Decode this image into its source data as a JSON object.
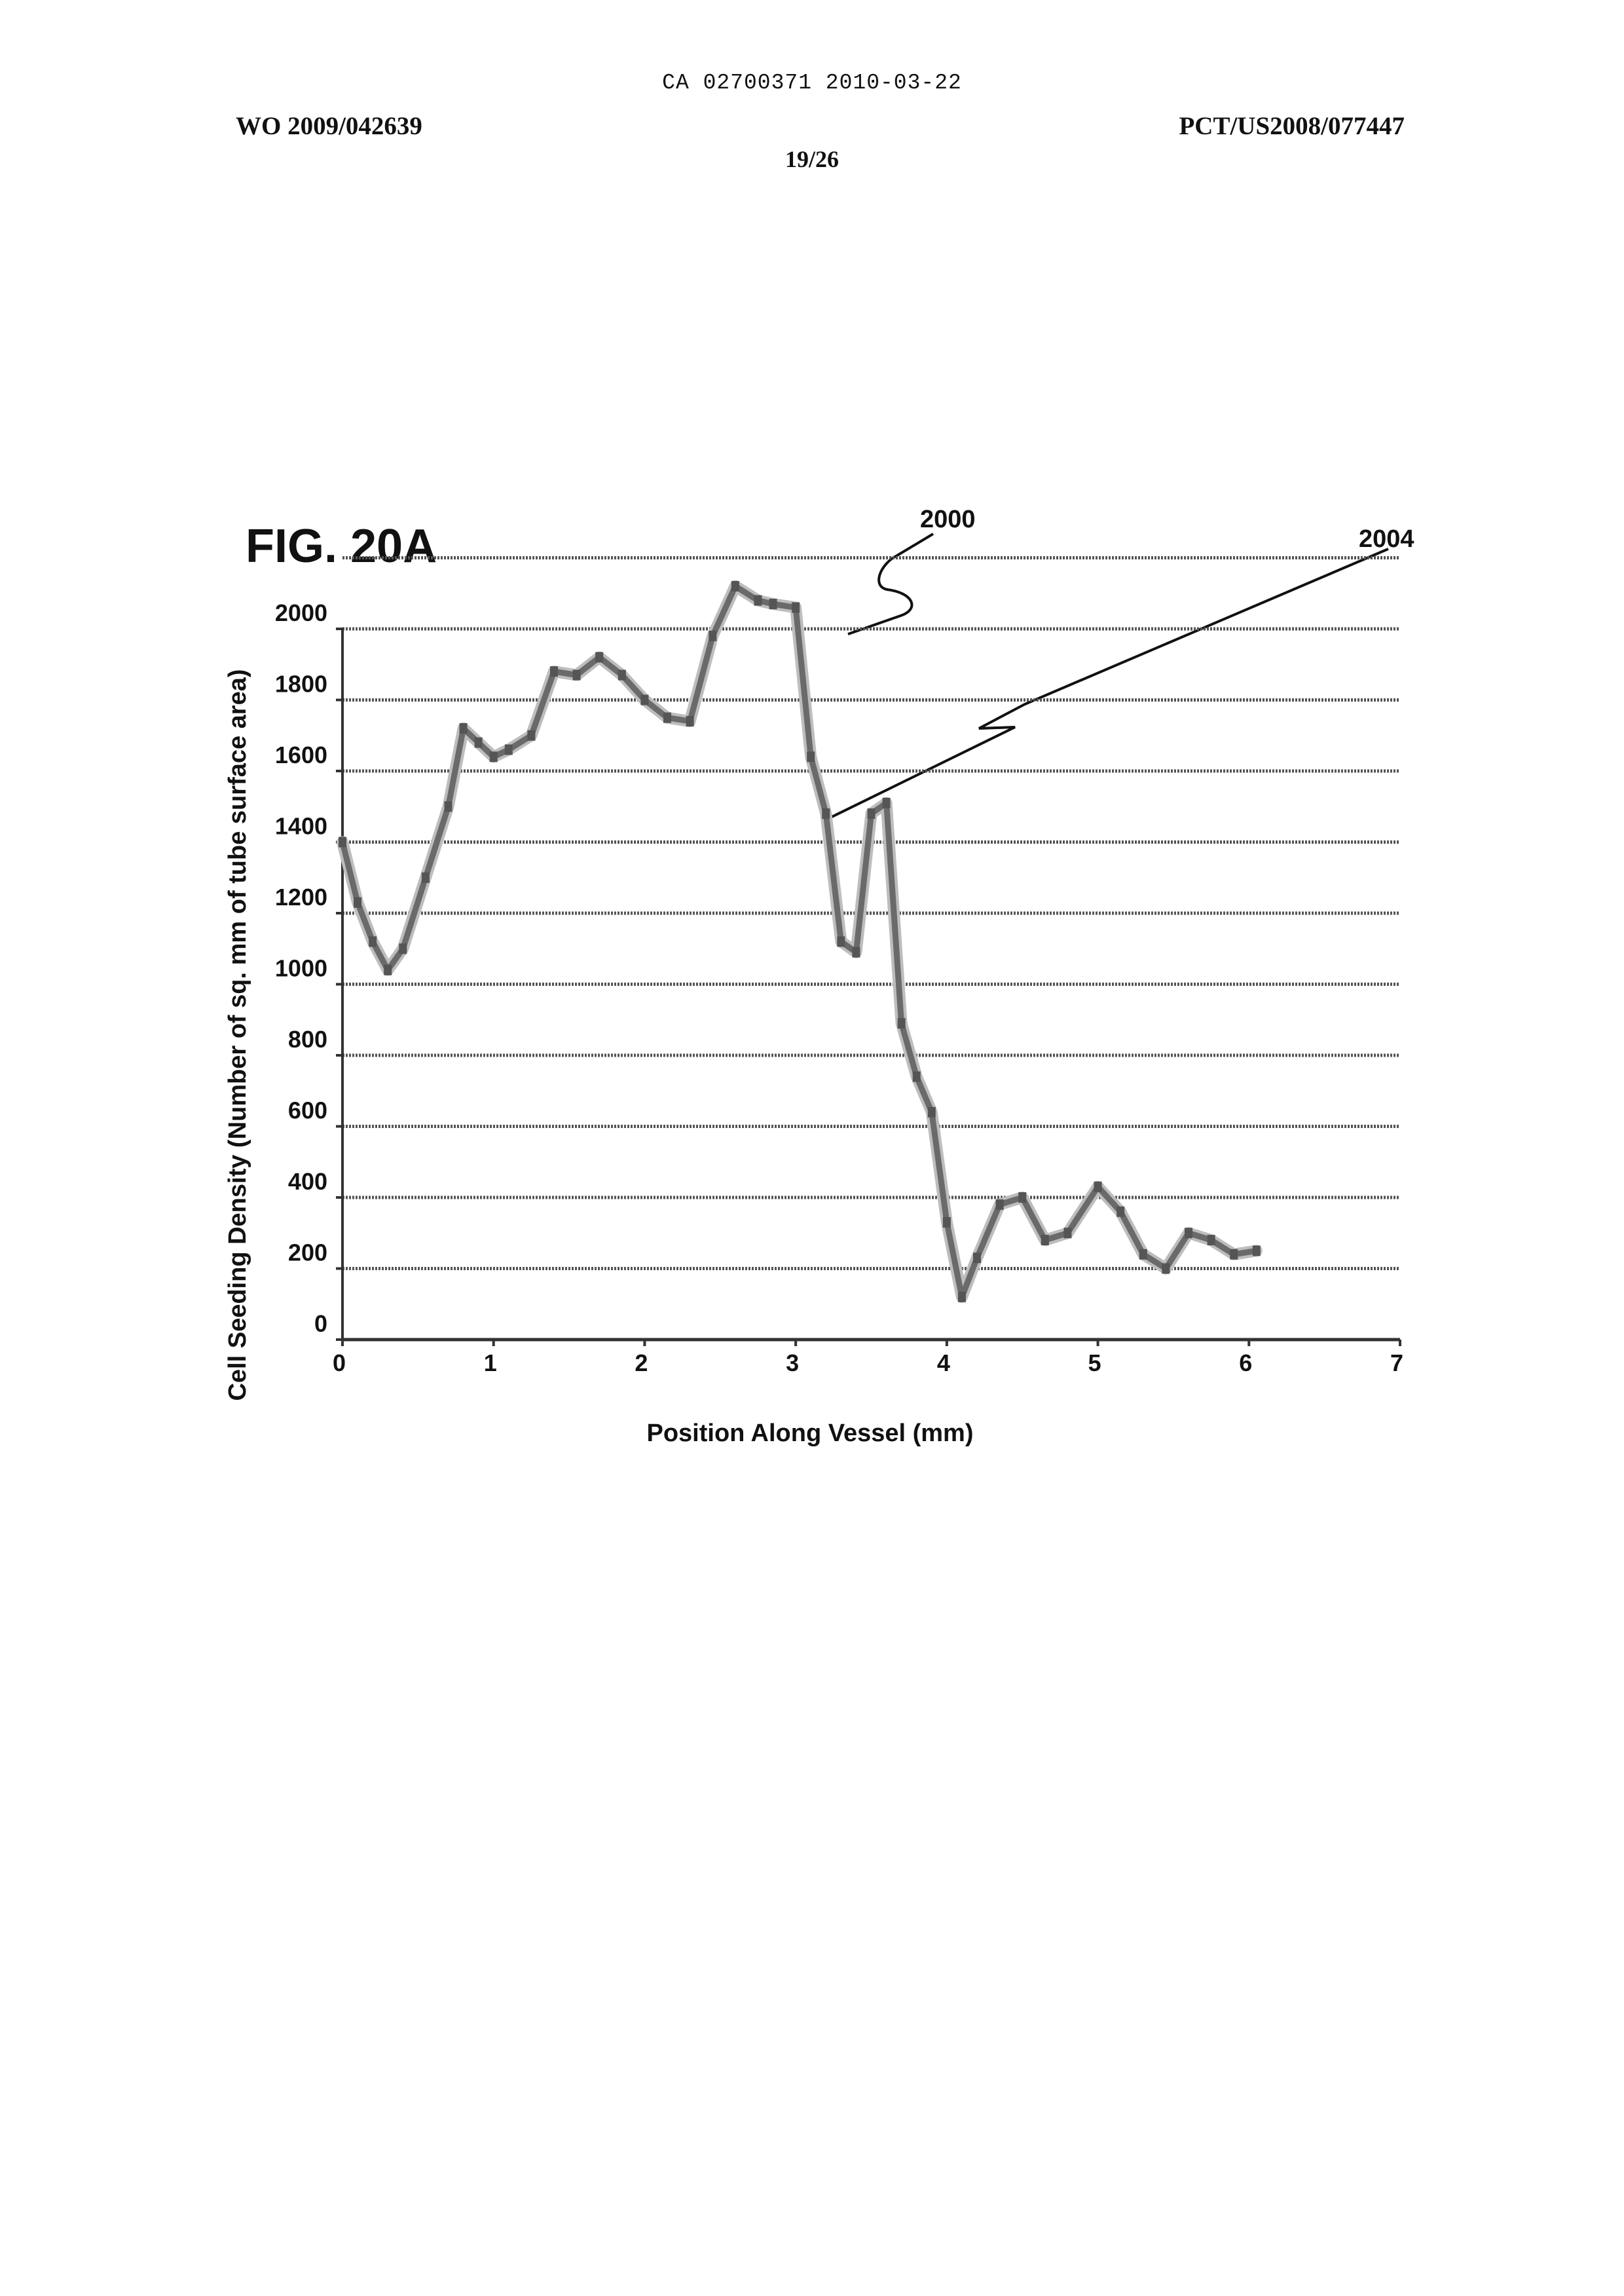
{
  "header": {
    "top_code": "CA 02700371 2010-03-22",
    "publication_number": "WO 2009/042639",
    "application_number": "PCT/US2008/077447",
    "sheet": "19/26"
  },
  "figure": {
    "label": "FIG. 20A",
    "ref_chart": "2000",
    "ref_curve": "2004"
  },
  "chart_data": {
    "type": "line",
    "xlabel": "Position Along Vessel (mm)",
    "ylabel": "Cell Seeding Density (Number of sq. mm of tube surface area)",
    "xlim": [
      0,
      7
    ],
    "ylim": [
      0,
      2000
    ],
    "x_ticks": [
      "0",
      "1",
      "2",
      "3",
      "4",
      "5",
      "6",
      "7"
    ],
    "y_ticks": [
      "0",
      "200",
      "400",
      "600",
      "800",
      "1000",
      "1200",
      "1400",
      "1600",
      "1800",
      "2000"
    ],
    "grid": true,
    "x": [
      0.0,
      0.1,
      0.2,
      0.3,
      0.4,
      0.55,
      0.7,
      0.8,
      0.9,
      1.0,
      1.1,
      1.25,
      1.4,
      1.55,
      1.7,
      1.85,
      2.0,
      2.15,
      2.3,
      2.45,
      2.6,
      2.75,
      2.85,
      3.0,
      3.1,
      3.2,
      3.3,
      3.4,
      3.5,
      3.6,
      3.7,
      3.8,
      3.9,
      4.0,
      4.1,
      4.2,
      4.35,
      4.5,
      4.65,
      4.8,
      5.0,
      5.15,
      5.3,
      5.45,
      5.6,
      5.75,
      5.9,
      6.05
    ],
    "values": [
      1400,
      1230,
      1120,
      1040,
      1100,
      1300,
      1500,
      1720,
      1680,
      1640,
      1660,
      1700,
      1880,
      1870,
      1920,
      1870,
      1800,
      1750,
      1740,
      1980,
      2120,
      2080,
      2070,
      2060,
      1640,
      1480,
      1120,
      1090,
      1480,
      1510,
      890,
      740,
      640,
      330,
      120,
      230,
      380,
      400,
      280,
      300,
      430,
      360,
      240,
      200,
      300,
      280,
      240,
      250
    ]
  }
}
